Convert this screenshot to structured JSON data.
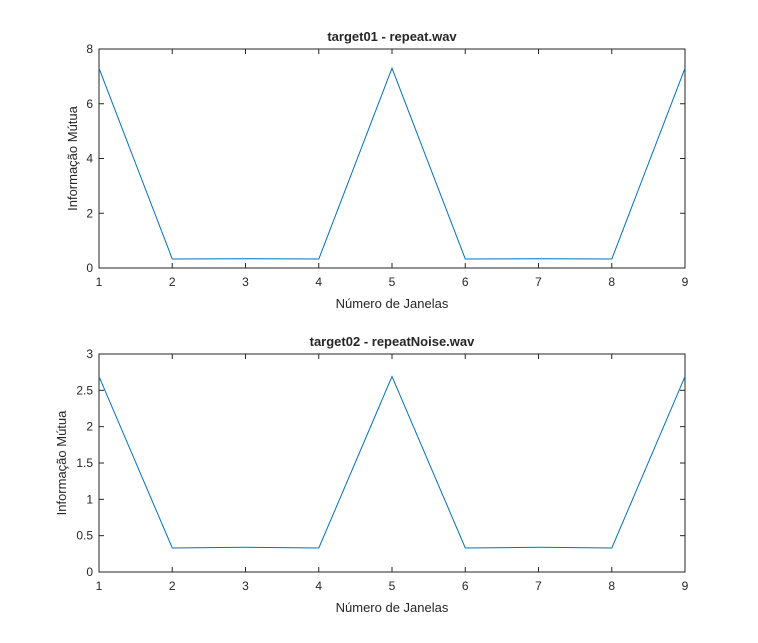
{
  "chart_data": [
    {
      "type": "line",
      "title": "target01 - repeat.wav",
      "xlabel": "Número de Janelas",
      "ylabel": "Informação Mútua",
      "xlim": [
        1,
        9
      ],
      "ylim": [
        0,
        8
      ],
      "xticks": [
        "1",
        "2",
        "3",
        "4",
        "5",
        "6",
        "7",
        "8",
        "9"
      ],
      "yticks": [
        "0",
        "2",
        "4",
        "6",
        "8"
      ],
      "grid": false,
      "series": [
        {
          "color": "#0072bd",
          "x": [
            1,
            2,
            3,
            4,
            5,
            6,
            7,
            8,
            9
          ],
          "y": [
            7.3,
            0.33,
            0.34,
            0.33,
            7.3,
            0.33,
            0.34,
            0.33,
            7.3
          ]
        }
      ]
    },
    {
      "type": "line",
      "title": "target02 - repeatNoise.wav",
      "xlabel": "Número de Janelas",
      "ylabel": "Informação Mútua",
      "xlim": [
        1,
        9
      ],
      "ylim": [
        0,
        3
      ],
      "xticks": [
        "1",
        "2",
        "3",
        "4",
        "5",
        "6",
        "7",
        "8",
        "9"
      ],
      "yticks": [
        "0",
        "0.5",
        "1",
        "1.5",
        "2",
        "2.5",
        "3"
      ],
      "grid": false,
      "series": [
        {
          "color": "#0072bd",
          "x": [
            1,
            2,
            3,
            4,
            5,
            6,
            7,
            8,
            9
          ],
          "y": [
            2.69,
            0.33,
            0.34,
            0.33,
            2.69,
            0.33,
            0.34,
            0.33,
            2.69
          ]
        }
      ]
    }
  ]
}
